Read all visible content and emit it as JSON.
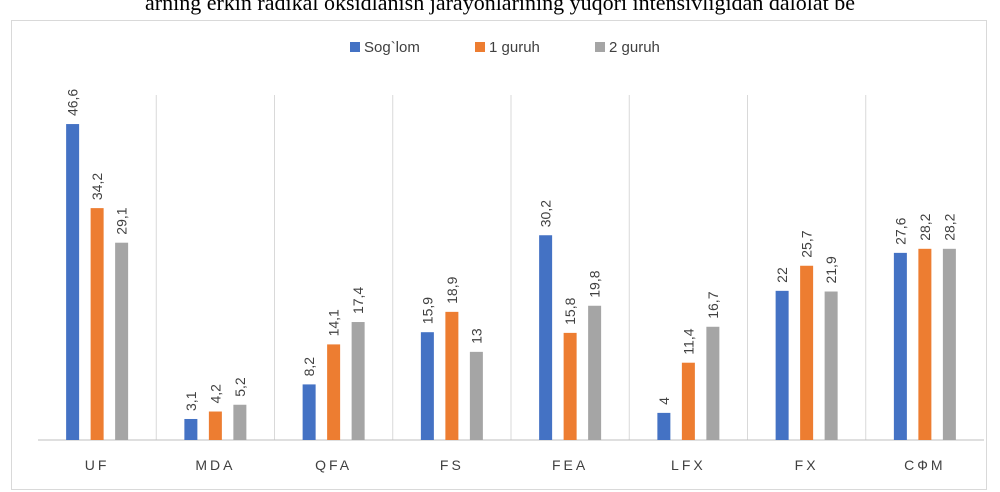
{
  "caption": "arning erkin radikal oksidlanish jarayonlarining yuqori intensivligidan dalolat be",
  "colors": {
    "series": [
      "#4472C4",
      "#ED7D31",
      "#A5A5A5"
    ],
    "grid": "#d9d9d9",
    "axis": "#bfbfbf"
  },
  "chart_data": {
    "type": "bar",
    "title": "",
    "xlabel": "",
    "ylabel": "",
    "ylim": [
      0,
      50
    ],
    "grid": "vertical separators",
    "legend_position": "top",
    "categories": [
      "UF",
      "MDA",
      "QFA",
      "FS",
      "FEA",
      "LFX",
      "FX",
      "СФМ"
    ],
    "series": [
      {
        "name": "Sog`lom",
        "values": [
          46.6,
          3.1,
          8.2,
          15.9,
          30.2,
          4,
          22,
          27.6
        ],
        "labels": [
          "46,6",
          "3,1",
          "8,2",
          "15,9",
          "30,2",
          "4",
          "22",
          "27,6"
        ]
      },
      {
        "name": "1 guruh",
        "values": [
          34.2,
          4.2,
          14.1,
          18.9,
          15.8,
          11.4,
          25.7,
          28.2
        ],
        "labels": [
          "34,2",
          "4,2",
          "14,1",
          "18,9",
          "15,8",
          "11,4",
          "25,7",
          "28,2"
        ]
      },
      {
        "name": "2 guruh",
        "values": [
          29.1,
          5.2,
          17.4,
          13,
          19.8,
          16.7,
          21.9,
          28.2
        ],
        "labels": [
          "29,1",
          "5,2",
          "17,4",
          "13",
          "19,8",
          "16,7",
          "21,9",
          "28,2"
        ]
      }
    ]
  }
}
